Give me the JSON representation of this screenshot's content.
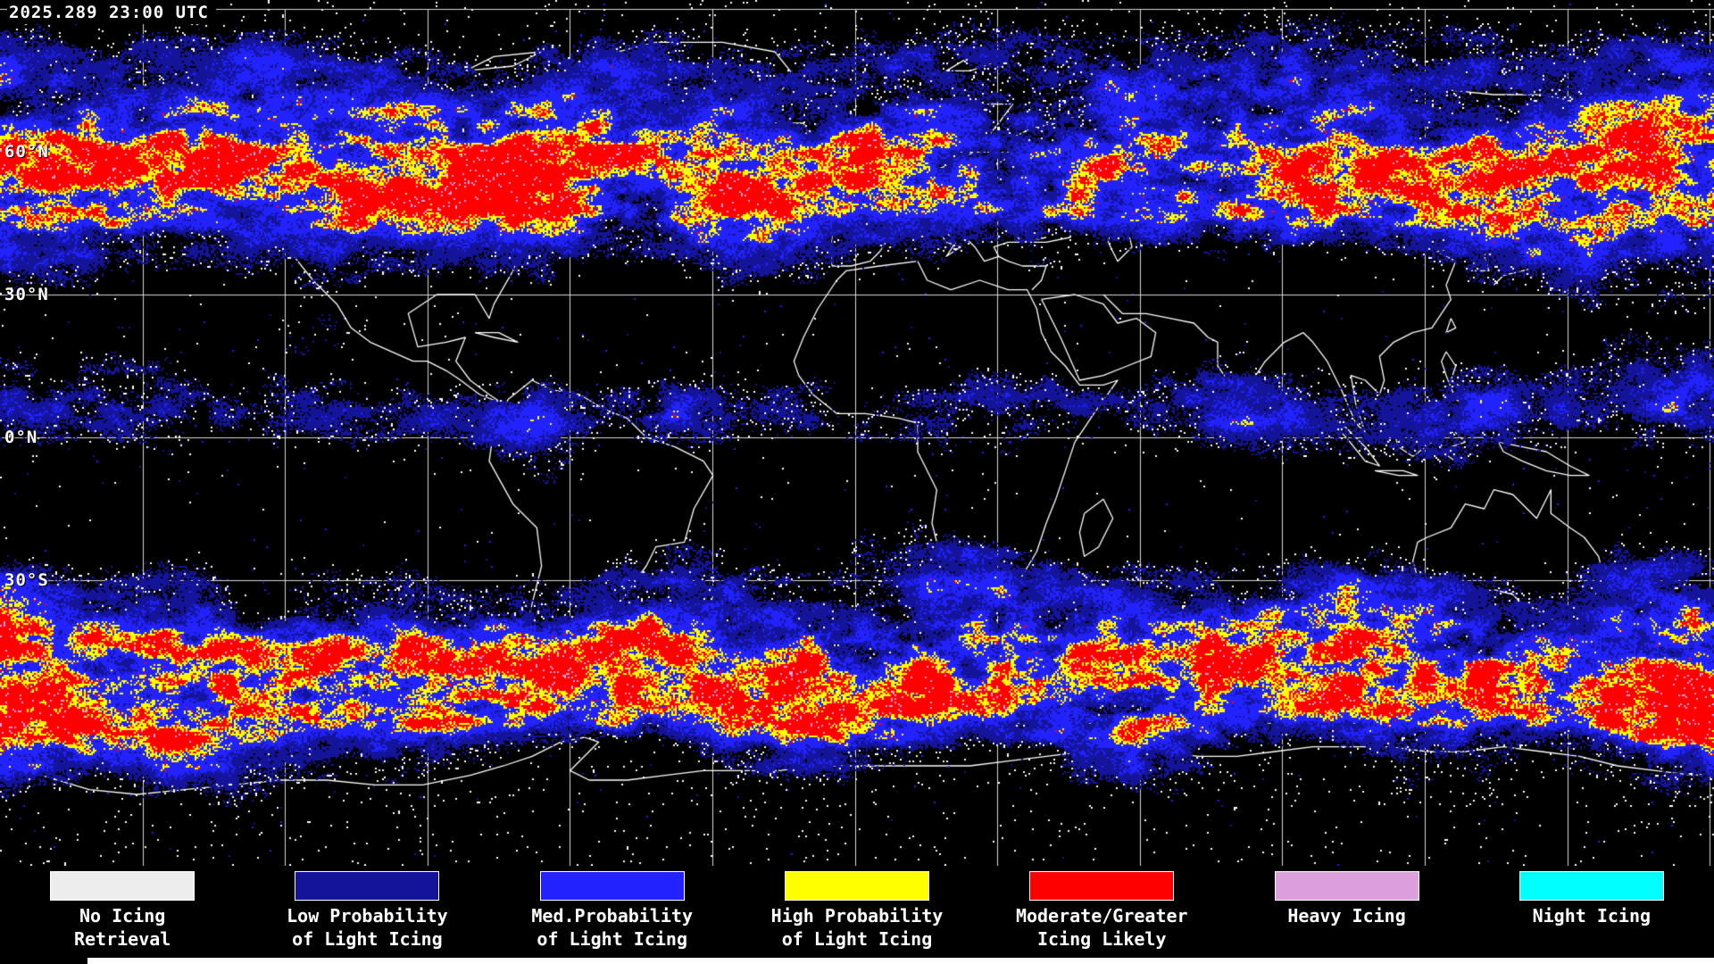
{
  "header": {
    "timestamp": "2025.289 23:00 UTC"
  },
  "map": {
    "background": "#000000",
    "gridline_color": "#d8d8d8",
    "coastline_color": "#ffffff",
    "latitude_labels": [
      "60°N",
      "30°N",
      "0°N",
      "30°S"
    ]
  },
  "legend": {
    "items": [
      {
        "key": "no-icing-retrieval",
        "color": "#EDEDED",
        "label_line1": "No Icing",
        "label_line2": "Retrieval"
      },
      {
        "key": "low-probability",
        "color": "#14149B",
        "label_line1": "Low Probability",
        "label_line2": "of Light Icing"
      },
      {
        "key": "med-probability",
        "color": "#2222FF",
        "label_line1": "Med.Probability",
        "label_line2": "of Light Icing"
      },
      {
        "key": "high-probability",
        "color": "#FFFF00",
        "label_line1": "High Probability",
        "label_line2": "of Light Icing"
      },
      {
        "key": "moderate-greater",
        "color": "#FF0000",
        "label_line1": "Moderate/Greater",
        "label_line2": "Icing Likely"
      },
      {
        "key": "heavy-icing",
        "color": "#DDA0DD",
        "label_line1": "Heavy Icing",
        "label_line2": ""
      },
      {
        "key": "night-icing",
        "color": "#00FFFF",
        "label_line1": "Night Icing",
        "label_line2": ""
      }
    ]
  }
}
